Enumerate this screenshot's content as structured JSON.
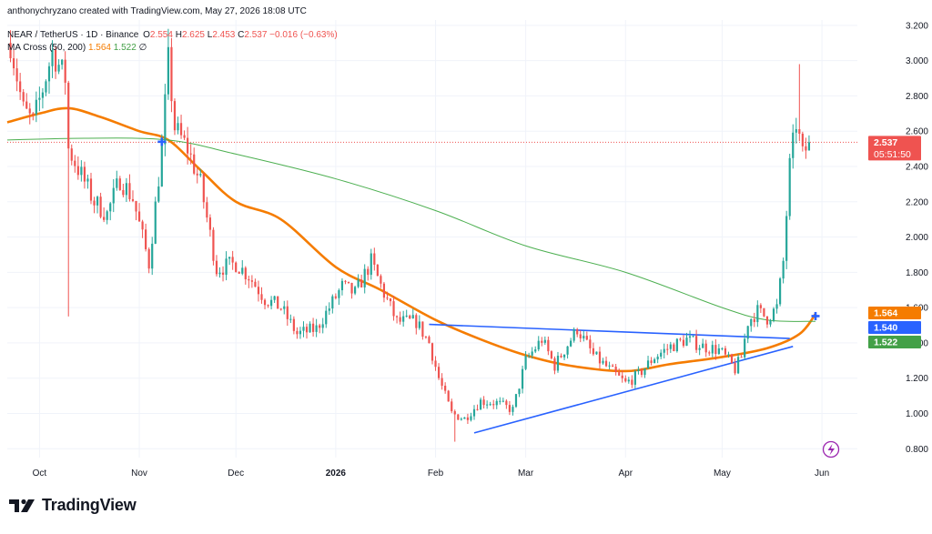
{
  "credit": "anthonychryzano created with TradingView.com, May 27, 2026 18:08 UTC",
  "brand": "TradingView",
  "legend": {
    "symbol": "NEAR / TetherUS · 1D · Binance",
    "open_label": "O",
    "open": "2.554",
    "high_label": "H",
    "high": "2.625",
    "low_label": "L",
    "low": "2.453",
    "close_label": "C",
    "close": "2.537",
    "change": "−0.016 (−0.63%)",
    "ma_name": "MA Cross (50, 200)",
    "ma_fast": "1.564",
    "ma_slow": "1.522",
    "ma_suffix": "∅"
  },
  "price_badges": {
    "last": "2.537",
    "countdown": "05:51:50",
    "ma_fast": "1.564",
    "mid": "1.540",
    "ma_slow": "1.522"
  },
  "colors": {
    "up": "#26a69a",
    "down": "#ef5350",
    "ma_fast": "#f57c00",
    "ma_slow": "#4caf50",
    "trendline": "#2962ff",
    "cross_marker": "#2962ff",
    "mid_badge": "#2962ff",
    "slow_badge": "#43a047",
    "fast_badge": "#f57c00"
  },
  "icons": {
    "logo": "tradingview-logo-icon",
    "indicator": "lightning-icon"
  },
  "chart_data": {
    "type": "candlestick",
    "title": "NEAR / TetherUS · 1D · Binance",
    "x_ticks": [
      "Oct",
      "Nov",
      "Dec",
      "2026",
      "Feb",
      "Mar",
      "Apr",
      "May",
      "Jun"
    ],
    "y_ticks": [
      "0.800",
      "1.000",
      "1.200",
      "1.400",
      "1.600",
      "1.800",
      "2.000",
      "2.200",
      "2.400",
      "2.600",
      "2.800",
      "3.000",
      "3.200"
    ],
    "ylim": [
      0.75,
      3.23
    ],
    "xlim": [
      "2025-09-21",
      "2026-06-12"
    ],
    "series": [
      {
        "name": "MA 50",
        "points": [
          [
            "2025-09-21",
            2.65
          ],
          [
            "2025-10-01",
            2.7
          ],
          [
            "2025-10-10",
            2.73
          ],
          [
            "2025-10-20",
            2.68
          ],
          [
            "2025-11-01",
            2.6
          ],
          [
            "2025-11-10",
            2.55
          ],
          [
            "2025-11-20",
            2.38
          ],
          [
            "2025-12-01",
            2.2
          ],
          [
            "2025-12-15",
            2.1
          ],
          [
            "2026-01-01",
            1.83
          ],
          [
            "2026-01-15",
            1.7
          ],
          [
            "2026-02-01",
            1.53
          ],
          [
            "2026-02-15",
            1.42
          ],
          [
            "2026-03-01",
            1.33
          ],
          [
            "2026-03-15",
            1.27
          ],
          [
            "2026-04-01",
            1.24
          ],
          [
            "2026-04-15",
            1.28
          ],
          [
            "2026-05-01",
            1.32
          ],
          [
            "2026-05-15",
            1.37
          ],
          [
            "2026-05-25",
            1.45
          ],
          [
            "2026-05-30",
            1.564
          ]
        ]
      },
      {
        "name": "MA 200",
        "points": [
          [
            "2025-09-21",
            2.55
          ],
          [
            "2025-10-15",
            2.56
          ],
          [
            "2025-11-10",
            2.55
          ],
          [
            "2025-12-01",
            2.47
          ],
          [
            "2026-01-01",
            2.33
          ],
          [
            "2026-02-01",
            2.15
          ],
          [
            "2026-03-01",
            1.95
          ],
          [
            "2026-04-01",
            1.8
          ],
          [
            "2026-05-01",
            1.6
          ],
          [
            "2026-05-15",
            1.53
          ],
          [
            "2026-05-30",
            1.522
          ]
        ]
      }
    ],
    "ohlc_path": [
      [
        "2025-09-22",
        3.1
      ],
      [
        "2025-09-26",
        2.72
      ],
      [
        "2025-09-29",
        2.65
      ],
      [
        "2025-10-02",
        2.84
      ],
      [
        "2025-10-05",
        3.05
      ],
      [
        "2025-10-09",
        2.9
      ],
      [
        "2025-10-10",
        2.5
      ],
      [
        "2025-10-14",
        2.35
      ],
      [
        "2025-10-18",
        2.2
      ],
      [
        "2025-10-22",
        2.13
      ],
      [
        "2025-10-26",
        2.33
      ],
      [
        "2025-10-30",
        2.22
      ],
      [
        "2025-11-04",
        1.85
      ],
      [
        "2025-11-08",
        2.5
      ],
      [
        "2025-11-10",
        3.0
      ],
      [
        "2025-11-12",
        2.62
      ],
      [
        "2025-11-16",
        2.5
      ],
      [
        "2025-11-20",
        2.3
      ],
      [
        "2025-11-25",
        1.82
      ],
      [
        "2025-12-01",
        1.85
      ],
      [
        "2025-12-05",
        1.78
      ],
      [
        "2025-12-10",
        1.65
      ],
      [
        "2025-12-15",
        1.6
      ],
      [
        "2025-12-20",
        1.45
      ],
      [
        "2025-12-26",
        1.48
      ],
      [
        "2025-12-30",
        1.6
      ],
      [
        "2026-01-03",
        1.72
      ],
      [
        "2026-01-07",
        1.68
      ],
      [
        "2026-01-12",
        1.86
      ],
      [
        "2026-01-16",
        1.68
      ],
      [
        "2026-01-20",
        1.52
      ],
      [
        "2026-01-26",
        1.52
      ],
      [
        "2026-01-30",
        1.4
      ],
      [
        "2026-02-02",
        1.2
      ],
      [
        "2026-02-06",
        1.0
      ],
      [
        "2026-02-10",
        0.97
      ],
      [
        "2026-02-15",
        1.07
      ],
      [
        "2026-02-20",
        1.06
      ],
      [
        "2026-02-25",
        1.02
      ],
      [
        "2026-03-01",
        1.3
      ],
      [
        "2026-03-06",
        1.42
      ],
      [
        "2026-03-10",
        1.27
      ],
      [
        "2026-03-15",
        1.42
      ],
      [
        "2026-03-17",
        1.48
      ],
      [
        "2026-03-22",
        1.33
      ],
      [
        "2026-03-27",
        1.25
      ],
      [
        "2026-04-01",
        1.17
      ],
      [
        "2026-04-05",
        1.22
      ],
      [
        "2026-04-10",
        1.32
      ],
      [
        "2026-04-15",
        1.38
      ],
      [
        "2026-04-20",
        1.42
      ],
      [
        "2026-04-25",
        1.38
      ],
      [
        "2026-04-30",
        1.36
      ],
      [
        "2026-05-03",
        1.3
      ],
      [
        "2026-05-05",
        1.25
      ],
      [
        "2026-05-07",
        1.32
      ],
      [
        "2026-05-09",
        1.52
      ],
      [
        "2026-05-12",
        1.58
      ],
      [
        "2026-05-15",
        1.54
      ],
      [
        "2026-05-18",
        1.6
      ],
      [
        "2026-05-20",
        1.86
      ],
      [
        "2026-05-22",
        2.4
      ],
      [
        "2026-05-24",
        2.65
      ],
      [
        "2026-05-26",
        2.46
      ],
      [
        "2026-05-28",
        2.537
      ]
    ],
    "trendlines": [
      {
        "from": [
          "2026-01-30",
          1.505
        ],
        "to": [
          "2026-05-22",
          1.425
        ]
      },
      {
        "from": [
          "2026-02-13",
          0.89
        ],
        "to": [
          "2026-05-23",
          1.38
        ]
      }
    ],
    "cross_markers": [
      [
        "2025-11-08",
        2.54
      ],
      [
        "2026-05-30",
        1.552
      ]
    ],
    "last_price": 2.537
  }
}
